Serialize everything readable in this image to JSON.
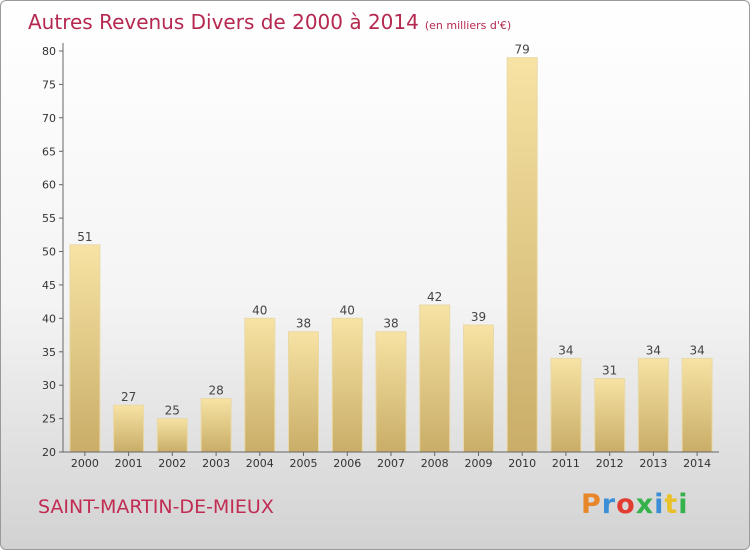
{
  "chart_data": {
    "type": "bar",
    "title": "Autres Revenus Divers de 2000 à 2014",
    "subtitle": "(en milliers d'€)",
    "categories": [
      "2000",
      "2001",
      "2002",
      "2003",
      "2004",
      "2005",
      "2006",
      "2007",
      "2008",
      "2009",
      "2010",
      "2011",
      "2012",
      "2013",
      "2014"
    ],
    "values": [
      51,
      27,
      25,
      28,
      40,
      38,
      40,
      38,
      42,
      39,
      79,
      34,
      31,
      34,
      34
    ],
    "ylim": [
      20,
      80
    ],
    "yticks": [
      20,
      25,
      30,
      35,
      40,
      45,
      50,
      55,
      60,
      65,
      70,
      75,
      80
    ],
    "grid": false,
    "bar_color_light": "#f7e3a4",
    "bar_color_dark": "#c9ad68"
  },
  "footer": {
    "commune": "SAINT-MARTIN-DE-MIEUX",
    "logo_text": "Proxiti",
    "logo_colors": [
      "#e8862a",
      "#3c8fd6",
      "#e23b2f",
      "#36b24a",
      "#3c8fd6",
      "#e8c228",
      "#36b24a"
    ]
  }
}
